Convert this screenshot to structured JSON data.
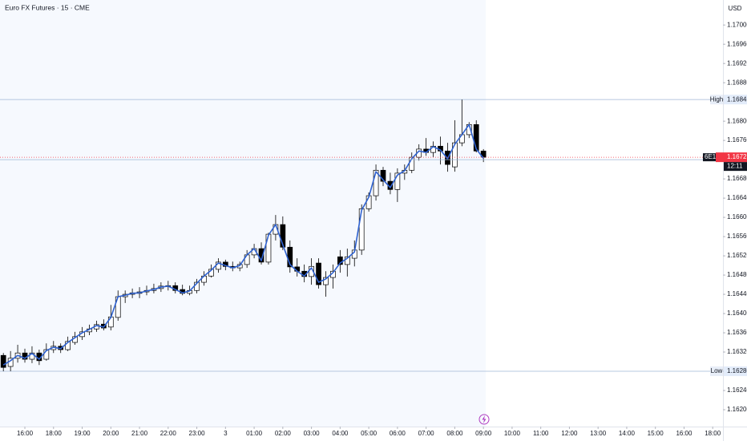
{
  "chart_data": {
    "type": "candlestick",
    "title": "Euro FX Futures · 15 · CME",
    "currency": "USD",
    "x": [
      -3,
      -2,
      -1,
      0,
      1,
      2,
      3,
      4,
      5,
      6,
      7,
      8,
      9,
      10,
      11,
      12,
      13,
      14,
      15,
      16,
      17,
      18,
      19,
      20,
      21,
      22,
      23,
      24,
      25,
      26,
      27,
      28,
      29,
      30,
      31,
      32,
      33,
      34,
      35,
      36,
      37,
      38,
      39,
      40,
      41,
      42,
      43,
      44,
      45,
      46,
      47,
      48,
      49,
      50,
      51,
      52,
      53,
      54,
      55,
      56,
      57,
      58,
      59,
      60,
      61,
      62,
      63,
      64
    ],
    "open": [
      1.16313,
      1.1629,
      1.16307,
      1.16318,
      1.16305,
      1.16318,
      1.16305,
      1.16325,
      1.16332,
      1.16325,
      1.1634,
      1.16352,
      1.16362,
      1.16368,
      1.16378,
      1.16372,
      1.16392,
      1.16435,
      1.1644,
      1.16442,
      1.16445,
      1.16448,
      1.16452,
      1.16457,
      1.16458,
      1.1645,
      1.16442,
      1.16448,
      1.16465,
      1.16478,
      1.16492,
      1.16507,
      1.16498,
      1.16495,
      1.16502,
      1.16522,
      1.16535,
      1.16507,
      1.16565,
      1.16585,
      1.16538,
      1.16497,
      1.16488,
      1.16477,
      1.16505,
      1.1646,
      1.16475,
      1.16518,
      1.16502,
      1.16515,
      1.16532,
      1.16618,
      1.16645,
      1.16698,
      1.16675,
      1.16658,
      1.16692,
      1.16698,
      1.16725,
      1.16742,
      1.16735,
      1.16748,
      1.16738,
      1.16705,
      1.16755,
      1.16772,
      1.16793,
      1.16738
    ],
    "high": [
      1.16318,
      1.16322,
      1.16335,
      1.16327,
      1.16332,
      1.16325,
      1.16338,
      1.16343,
      1.16338,
      1.16352,
      1.16362,
      1.16372,
      1.16377,
      1.16385,
      1.16388,
      1.16418,
      1.16448,
      1.16448,
      1.16452,
      1.16455,
      1.16458,
      1.16462,
      1.16465,
      1.16468,
      1.16465,
      1.1646,
      1.16458,
      1.16472,
      1.16488,
      1.16502,
      1.16515,
      1.16512,
      1.16508,
      1.16508,
      1.16532,
      1.16545,
      1.16548,
      1.16568,
      1.16605,
      1.16602,
      1.16552,
      1.16515,
      1.16502,
      1.16515,
      1.16515,
      1.16488,
      1.16502,
      1.16532,
      1.16535,
      1.16552,
      1.16627,
      1.16652,
      1.1671,
      1.16705,
      1.16693,
      1.16702,
      1.1671,
      1.16735,
      1.16752,
      1.16765,
      1.16758,
      1.16768,
      1.16755,
      1.16802,
      1.16845,
      1.16798,
      1.16802,
      1.16742
    ],
    "low": [
      1.1628,
      1.1628,
      1.16298,
      1.16298,
      1.16297,
      1.16293,
      1.16302,
      1.16318,
      1.16318,
      1.16322,
      1.16335,
      1.16345,
      1.16355,
      1.16362,
      1.16365,
      1.16365,
      1.16385,
      1.16422,
      1.16432,
      1.16432,
      1.16438,
      1.16442,
      1.16445,
      1.16448,
      1.16442,
      1.16438,
      1.16438,
      1.16442,
      1.16458,
      1.16475,
      1.16485,
      1.1649,
      1.16488,
      1.16488,
      1.16495,
      1.16515,
      1.16502,
      1.16502,
      1.16552,
      1.16532,
      1.16485,
      1.16477,
      1.16465,
      1.1646,
      1.16452,
      1.16435,
      1.16452,
      1.16485,
      1.16477,
      1.16498,
      1.16522,
      1.16612,
      1.16635,
      1.16665,
      1.16648,
      1.16632,
      1.16678,
      1.16692,
      1.16718,
      1.16728,
      1.16725,
      1.1671,
      1.16695,
      1.16695,
      1.16748,
      1.16765,
      1.16735,
      1.16715
    ],
    "close": [
      1.16288,
      1.16307,
      1.16318,
      1.16305,
      1.16318,
      1.16302,
      1.16325,
      1.16332,
      1.16325,
      1.16342,
      1.16352,
      1.16362,
      1.16368,
      1.16377,
      1.1637,
      1.16393,
      1.16435,
      1.1644,
      1.16443,
      1.16445,
      1.16448,
      1.16452,
      1.16457,
      1.16458,
      1.16448,
      1.16442,
      1.16448,
      1.16465,
      1.16478,
      1.16492,
      1.16507,
      1.16498,
      1.16495,
      1.16502,
      1.16522,
      1.16535,
      1.16507,
      1.16565,
      1.16585,
      1.16538,
      1.16497,
      1.16488,
      1.16477,
      1.16498,
      1.1646,
      1.16475,
      1.16488,
      1.16502,
      1.16518,
      1.16532,
      1.16618,
      1.16645,
      1.16698,
      1.16675,
      1.16658,
      1.16692,
      1.16698,
      1.16725,
      1.16742,
      1.16735,
      1.16748,
      1.16738,
      1.1671,
      1.16755,
      1.16772,
      1.16793,
      1.16738,
      1.16725
    ],
    "up_color": "#ffffff",
    "down_color": "#000000",
    "wick_color": "#000000",
    "line": {
      "color": "#2f62d0",
      "values": [
        1.16293,
        1.16302,
        1.16313,
        1.16307,
        1.16317,
        1.16305,
        1.16323,
        1.1633,
        1.16327,
        1.1634,
        1.1635,
        1.1636,
        1.16367,
        1.16375,
        1.16372,
        1.16392,
        1.16435,
        1.16438,
        1.16442,
        1.16443,
        1.16447,
        1.1645,
        1.16455,
        1.16457,
        1.1645,
        1.16443,
        1.16447,
        1.16463,
        1.16478,
        1.1649,
        1.16505,
        1.165,
        1.16495,
        1.165,
        1.16522,
        1.16535,
        1.1651,
        1.16563,
        1.16585,
        1.16543,
        1.16502,
        1.16488,
        1.16478,
        1.16495,
        1.16465,
        1.16472,
        1.16485,
        1.16505,
        1.16515,
        1.16528,
        1.16615,
        1.16642,
        1.16695,
        1.16678,
        1.16662,
        1.16688,
        1.16697,
        1.16722,
        1.16738,
        1.16735,
        1.16747,
        1.1674,
        1.16722,
        1.16752,
        1.16772,
        1.16793,
        1.16742,
        1.16723
      ]
    },
    "xlim": [
      -3.47,
      97.43
    ],
    "xticks": [
      {
        "value": 0,
        "label": "16:00"
      },
      {
        "value": 4,
        "label": "18:00"
      },
      {
        "value": 8,
        "label": "19:00"
      },
      {
        "value": 12,
        "label": "20:00"
      },
      {
        "value": 16,
        "label": "21:00"
      },
      {
        "value": 20,
        "label": "22:00"
      },
      {
        "value": 24,
        "label": "23:00"
      },
      {
        "value": 28,
        "label": "3"
      },
      {
        "value": 32,
        "label": "01:00"
      },
      {
        "value": 36,
        "label": "02:00"
      },
      {
        "value": 40,
        "label": "03:00"
      },
      {
        "value": 44,
        "label": "04:00"
      },
      {
        "value": 48,
        "label": "05:00"
      },
      {
        "value": 52,
        "label": "06:00"
      },
      {
        "value": 56,
        "label": "07:00"
      },
      {
        "value": 60,
        "label": "08:00"
      },
      {
        "value": 64,
        "label": "09:00"
      },
      {
        "value": 68,
        "label": "10:00"
      },
      {
        "value": 72,
        "label": "11:00"
      },
      {
        "value": 76,
        "label": "12:00"
      },
      {
        "value": 80,
        "label": "13:00"
      },
      {
        "value": 84,
        "label": "14:00"
      },
      {
        "value": 88,
        "label": "15:00"
      },
      {
        "value": 92,
        "label": "16:00"
      },
      {
        "value": 96,
        "label": "18:00"
      }
    ],
    "ylim": [
      1.16165,
      1.17052
    ],
    "yticks": [
      {
        "value": 1.17,
        "label": "1.17000"
      },
      {
        "value": 1.1696,
        "label": "1.16960"
      },
      {
        "value": 1.1692,
        "label": "1.16920"
      },
      {
        "value": 1.1688,
        "label": "1.16880"
      },
      {
        "value": 1.168,
        "label": "1.16800"
      },
      {
        "value": 1.1676,
        "label": "1.16760"
      },
      {
        "value": 1.1668,
        "label": "1.16680"
      },
      {
        "value": 1.1664,
        "label": "1.16640"
      },
      {
        "value": 1.166,
        "label": "1.16600"
      },
      {
        "value": 1.1656,
        "label": "1.16560"
      },
      {
        "value": 1.1652,
        "label": "1.16520"
      },
      {
        "value": 1.1648,
        "label": "1.16480"
      },
      {
        "value": 1.1644,
        "label": "1.16440"
      },
      {
        "value": 1.164,
        "label": "1.16400"
      },
      {
        "value": 1.1636,
        "label": "1.16360"
      },
      {
        "value": 1.1632,
        "label": "1.16320"
      },
      {
        "value": 1.1624,
        "label": "1.16240"
      },
      {
        "value": 1.162,
        "label": "1.16200"
      }
    ],
    "grid": false,
    "levels": [
      {
        "label": "High",
        "value": 1.16845,
        "value_label": "1.16845",
        "color": "#9fb6d6"
      },
      {
        "label": "Low",
        "value": 1.1628,
        "value_label": "1.16280",
        "color": "#9fb6d6"
      }
    ],
    "last_price": {
      "value": 1.16725,
      "label": "1.16725",
      "symbol": "6E1!",
      "countdown": "12:11",
      "color": "#f23645"
    }
  }
}
